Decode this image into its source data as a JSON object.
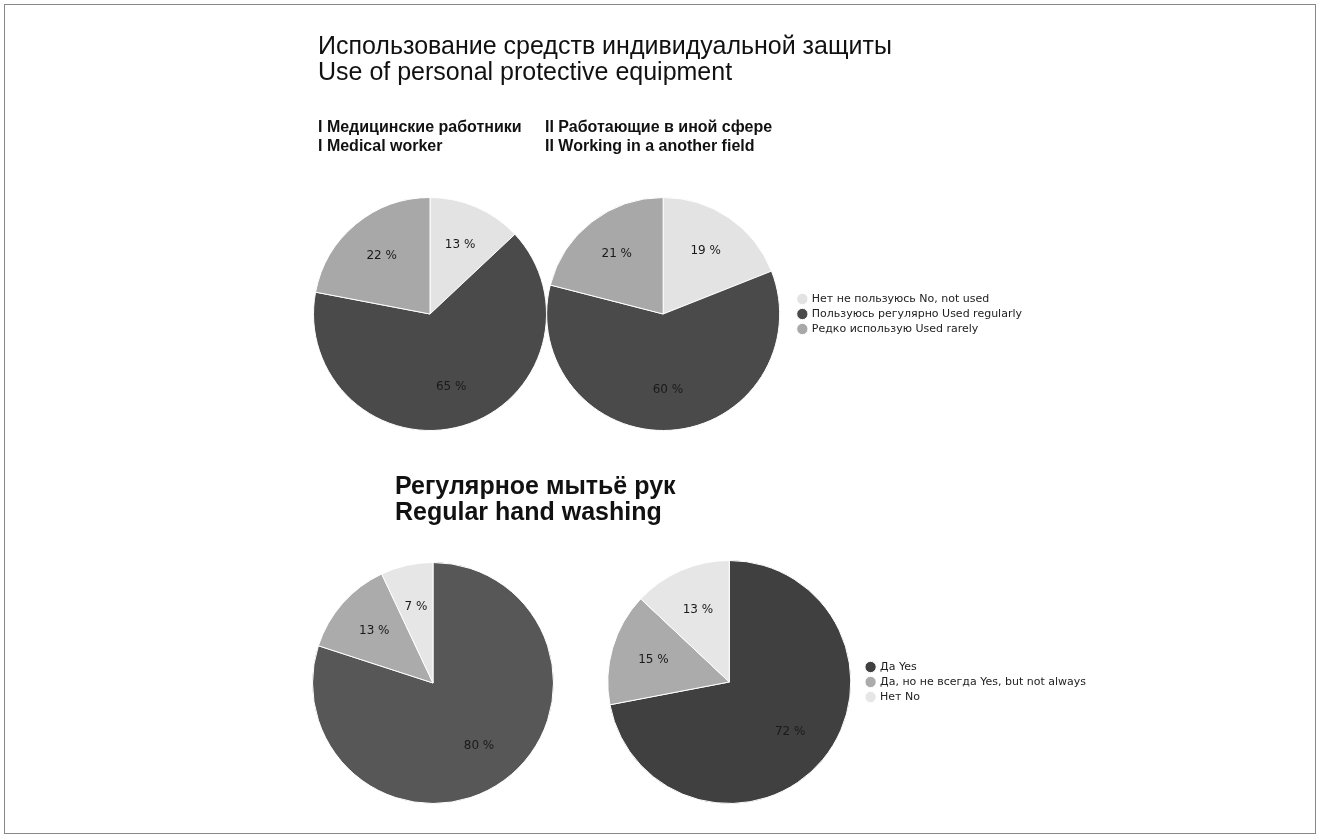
{
  "chart_data": [
    {
      "type": "pie",
      "title": "Использование средств индивидуальной защиты\nUse of personal protective equipment",
      "subtitle": "I Медицинские работники\nI Medical worker",
      "categories": [
        null,
        null,
        null
      ],
      "values": [
        13,
        65,
        22
      ],
      "value_labels": [
        "13 %",
        "65 %",
        "22 %"
      ],
      "colors": [
        "#e3e3e3",
        "#4a4a4a",
        "#a8a8a8"
      ],
      "legend": false
    },
    {
      "type": "pie",
      "subtitle": "II Работающие в иной сфере\nII Working in a another field",
      "categories": [
        "Нет не пользуюсь No, not used",
        "Пользуюсь регулярно Used regularly",
        "Редко использую Used rarely"
      ],
      "values": [
        19,
        60,
        21
      ],
      "value_labels": [
        "19 %",
        "60 %",
        "21 %"
      ],
      "colors": [
        "#e3e3e3",
        "#4a4a4a",
        "#a8a8a8"
      ],
      "legend": "right"
    },
    {
      "type": "pie",
      "title": "Регулярное мытьё рук\nRegular hand washing",
      "categories": [
        null,
        null,
        null
      ],
      "values": [
        80,
        13,
        7
      ],
      "value_labels": [
        "80 %",
        "13 %",
        "7 %"
      ],
      "colors": [
        "#575757",
        "#ababab",
        "#e6e6e6"
      ],
      "legend": false
    },
    {
      "type": "pie",
      "categories": [
        "Да Yes",
        "Да, но не всегда Yes, but not always",
        "Нет No"
      ],
      "values": [
        72,
        15,
        13
      ],
      "value_labels": [
        "72 %",
        "15 %",
        "13 %"
      ],
      "colors": [
        "#404040",
        "#ababab",
        "#e6e6e6"
      ],
      "legend": "right"
    }
  ]
}
